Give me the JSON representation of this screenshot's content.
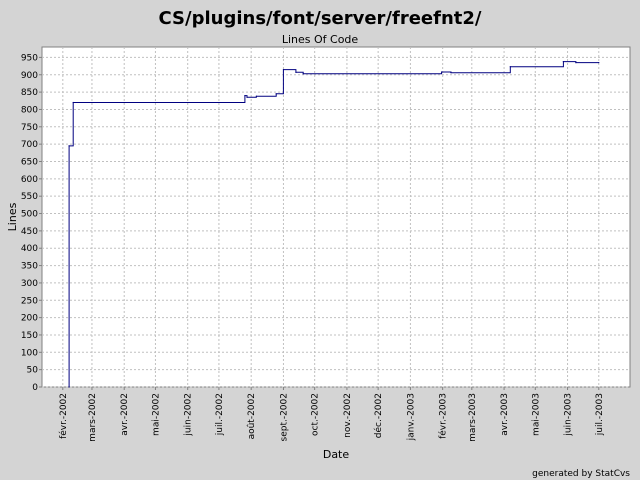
{
  "chart_data": {
    "type": "line",
    "title": "CS/plugins/font/server/freefnt2/",
    "subtitle": "Lines Of Code",
    "xlabel": "Date",
    "ylabel": "Lines",
    "ylim": [
      0,
      980
    ],
    "yticks": [
      0,
      50,
      100,
      150,
      200,
      250,
      300,
      350,
      400,
      450,
      500,
      550,
      600,
      650,
      700,
      750,
      800,
      850,
      900,
      950
    ],
    "xlim": [
      "2002-01-12",
      "2003-07-31"
    ],
    "xticks": [
      {
        "date": "2002-02-01",
        "label": "févr.-2002"
      },
      {
        "date": "2002-03-01",
        "label": "mars-2002"
      },
      {
        "date": "2002-04-01",
        "label": "avr.-2002"
      },
      {
        "date": "2002-05-01",
        "label": "mai-2002"
      },
      {
        "date": "2002-06-01",
        "label": "juin-2002"
      },
      {
        "date": "2002-07-01",
        "label": "juil.-2002"
      },
      {
        "date": "2002-08-01",
        "label": "août-2002"
      },
      {
        "date": "2002-09-01",
        "label": "sept.-2002"
      },
      {
        "date": "2002-10-01",
        "label": "oct.-2002"
      },
      {
        "date": "2002-11-01",
        "label": "nov.-2002"
      },
      {
        "date": "2002-12-01",
        "label": "déc.-2002"
      },
      {
        "date": "2003-01-01",
        "label": "janv.-2003"
      },
      {
        "date": "2003-02-01",
        "label": "févr.-2003"
      },
      {
        "date": "2003-03-01",
        "label": "mars-2003"
      },
      {
        "date": "2003-04-01",
        "label": "avr.-2003"
      },
      {
        "date": "2003-05-01",
        "label": "mai-2003"
      },
      {
        "date": "2003-06-01",
        "label": "juin-2003"
      },
      {
        "date": "2003-07-01",
        "label": "juil.-2003"
      }
    ],
    "grid": true,
    "line_color": "#000080",
    "series": [
      {
        "step": true,
        "points": [
          {
            "x": "2002-02-07",
            "y": 0
          },
          {
            "x": "2002-02-07",
            "y": 695
          },
          {
            "x": "2002-02-11",
            "y": 820
          },
          {
            "x": "2002-07-26",
            "y": 840
          },
          {
            "x": "2002-07-28",
            "y": 835
          },
          {
            "x": "2002-08-06",
            "y": 838
          },
          {
            "x": "2002-08-25",
            "y": 845
          },
          {
            "x": "2002-09-01",
            "y": 915
          },
          {
            "x": "2002-09-13",
            "y": 907
          },
          {
            "x": "2002-09-20",
            "y": 903
          },
          {
            "x": "2003-01-31",
            "y": 908
          },
          {
            "x": "2003-02-09",
            "y": 906
          },
          {
            "x": "2003-04-07",
            "y": 923
          },
          {
            "x": "2003-05-28",
            "y": 938
          },
          {
            "x": "2003-06-09",
            "y": 935
          },
          {
            "x": "2003-07-01",
            "y": 935
          }
        ]
      }
    ]
  },
  "footer": {
    "credit": "generated by StatCvs"
  }
}
